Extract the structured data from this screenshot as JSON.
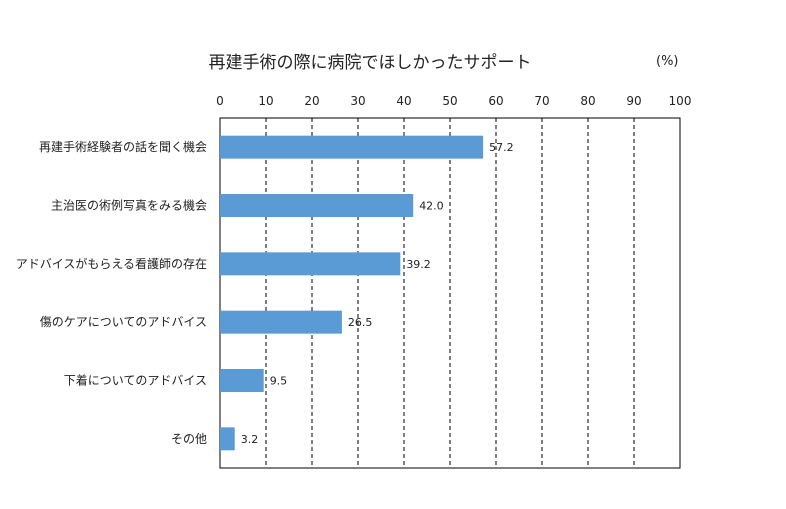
{
  "chart_data": {
    "type": "bar",
    "orientation": "horizontal",
    "title": "再建手術の際に病院でほしかったサポート",
    "unit": "(%)",
    "categories": [
      "再建手術経験者の話を聞く機会",
      "主治医の術例写真をみる機会",
      "アドバイスがもらえる看護師の存在",
      "傷のケアについてのアドバイス",
      "下着についてのアドバイス",
      "その他"
    ],
    "values": [
      57.2,
      42.0,
      39.2,
      26.5,
      9.5,
      3.2
    ],
    "value_labels": [
      "57.2",
      "42.0",
      "39.2",
      "26.5",
      "9.5",
      "3.2"
    ],
    "xlim": [
      0,
      100
    ],
    "xticks": [
      "0",
      "10",
      "20",
      "30",
      "40",
      "50",
      "60",
      "70",
      "80",
      "90",
      "100"
    ],
    "grid": "vertical-dashed",
    "bar_color": "#5b9bd5"
  }
}
